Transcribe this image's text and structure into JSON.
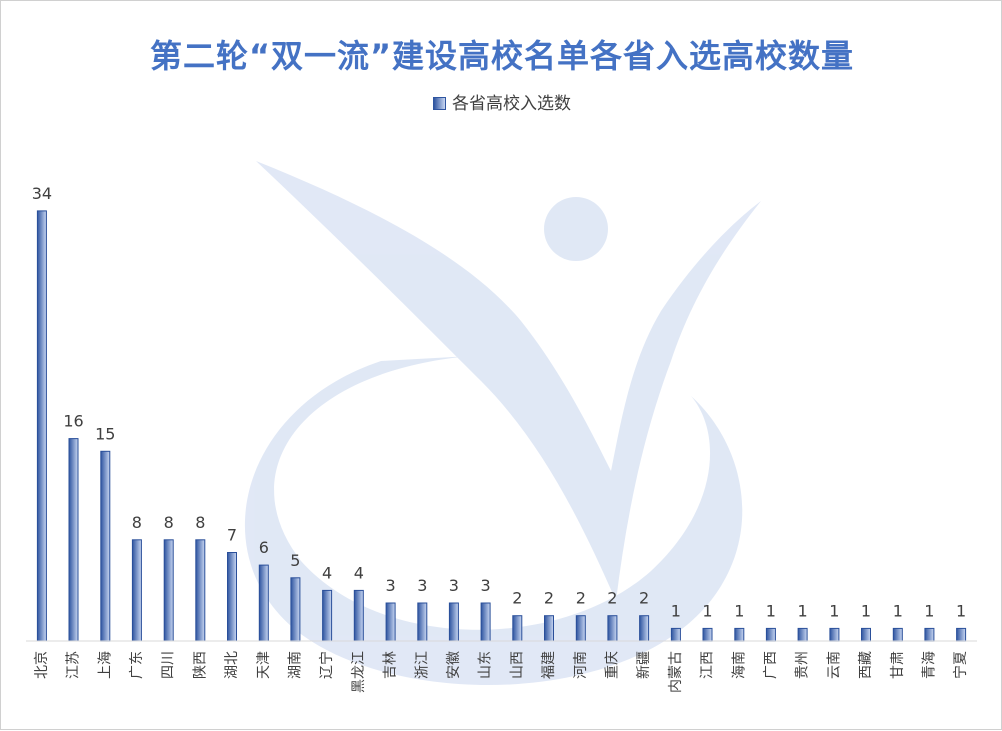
{
  "title": "第二轮“双一流”建设高校名单各省入选高校数量",
  "legend": "各省高校入选数",
  "colors": {
    "bar_dark": "#2f55a0",
    "bar_light": "#c9d7f2",
    "bar_stroke": "#2a4f9a",
    "axis": "#d9d9d9",
    "label": "#404040",
    "watermark": "#c8d6ee",
    "title": "#4472c4"
  },
  "chart_data": {
    "type": "bar",
    "title": "第二轮“双一流”建设高校名单各省入选高校数量",
    "xlabel": "",
    "ylabel": "",
    "ylim": [
      0,
      36
    ],
    "grid": false,
    "legend_position": "top",
    "data_labels": true,
    "categories": [
      "北京",
      "江苏",
      "上海",
      "广东",
      "四川",
      "陕西",
      "湖北",
      "天津",
      "湖南",
      "辽宁",
      "黑龙江",
      "吉林",
      "浙江",
      "安徽",
      "山东",
      "山西",
      "福建",
      "河南",
      "重庆",
      "新疆",
      "内蒙古",
      "江西",
      "海南",
      "广西",
      "贵州",
      "云南",
      "西藏",
      "甘肃",
      "青海",
      "宁夏"
    ],
    "series": [
      {
        "name": "各省高校入选数",
        "values": [
          34,
          16,
          15,
          8,
          8,
          8,
          7,
          6,
          5,
          4,
          4,
          3,
          3,
          3,
          3,
          2,
          2,
          2,
          2,
          2,
          1,
          1,
          1,
          1,
          1,
          1,
          1,
          1,
          1,
          1
        ]
      }
    ]
  }
}
